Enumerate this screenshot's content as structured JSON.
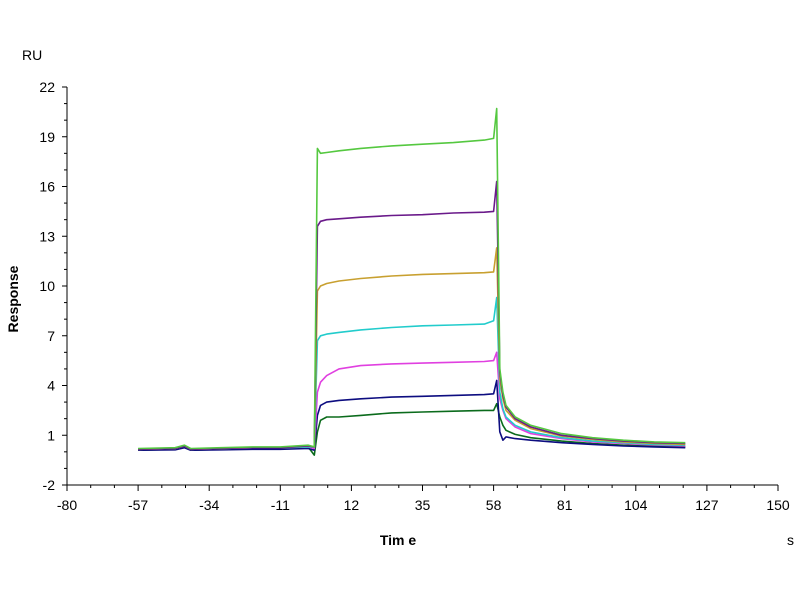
{
  "chart_data": {
    "type": "line",
    "title": "",
    "xlabel": "Tim e",
    "ylabel": "Response",
    "x_unit": "s",
    "y_unit": "RU",
    "xlim": [
      -80,
      150
    ],
    "ylim": [
      -2,
      22
    ],
    "xticks": [
      -80,
      -57,
      -34,
      -11,
      12,
      35,
      58,
      81,
      104,
      127,
      150
    ],
    "yticks": [
      -2,
      1,
      4,
      7,
      10,
      13,
      16,
      19,
      22
    ],
    "grid": false,
    "legend": "none",
    "series": [
      {
        "color": "#0b6b1c",
        "x": [
          -57,
          -45,
          -42,
          -40,
          -30,
          -20,
          -11,
          -2,
          0,
          1,
          2,
          4,
          8,
          15,
          25,
          35,
          45,
          55,
          58,
          59,
          60,
          61,
          62,
          65,
          70,
          80,
          90,
          100,
          110,
          120
        ],
        "y": [
          0.1,
          0.15,
          0.3,
          0.1,
          0.15,
          0.2,
          0.2,
          0.3,
          -0.2,
          1.2,
          1.9,
          2.1,
          2.1,
          2.2,
          2.35,
          2.4,
          2.45,
          2.5,
          2.5,
          2.9,
          2.1,
          1.6,
          1.3,
          1.05,
          0.85,
          0.65,
          0.5,
          0.4,
          0.35,
          0.3
        ]
      },
      {
        "color": "#0d0d80",
        "x": [
          -57,
          -45,
          -42,
          -40,
          -30,
          -20,
          -11,
          -2,
          0,
          1,
          2,
          4,
          8,
          15,
          25,
          35,
          45,
          55,
          58,
          59,
          60,
          61,
          62,
          65,
          70,
          80,
          90,
          100,
          110,
          120
        ],
        "y": [
          0.1,
          0.12,
          0.25,
          0.1,
          0.12,
          0.15,
          0.15,
          0.2,
          0.1,
          2.2,
          2.8,
          3.0,
          3.1,
          3.2,
          3.3,
          3.35,
          3.4,
          3.45,
          3.5,
          4.3,
          1.2,
          0.7,
          0.9,
          0.8,
          0.7,
          0.55,
          0.45,
          0.35,
          0.3,
          0.25
        ]
      },
      {
        "color": "#e040e0",
        "x": [
          -57,
          -45,
          -42,
          -40,
          -30,
          -20,
          -11,
          -2,
          0,
          1,
          2,
          4,
          8,
          15,
          25,
          35,
          45,
          55,
          58,
          59,
          60,
          61,
          62,
          65,
          70,
          80,
          90,
          100,
          110,
          120
        ],
        "y": [
          0.15,
          0.2,
          0.35,
          0.15,
          0.2,
          0.25,
          0.25,
          0.3,
          0.2,
          3.6,
          4.2,
          4.6,
          5.0,
          5.2,
          5.3,
          5.35,
          5.4,
          5.45,
          5.5,
          6.0,
          3.2,
          2.5,
          2.0,
          1.5,
          1.1,
          0.8,
          0.6,
          0.5,
          0.42,
          0.35
        ]
      },
      {
        "color": "#22cccc",
        "x": [
          -57,
          -45,
          -42,
          -40,
          -30,
          -20,
          -11,
          -2,
          0,
          1,
          2,
          4,
          8,
          15,
          25,
          35,
          45,
          55,
          58,
          59,
          60,
          61,
          62,
          65,
          70,
          80,
          90,
          100,
          110,
          120
        ],
        "y": [
          0.15,
          0.2,
          0.35,
          0.15,
          0.2,
          0.25,
          0.25,
          0.3,
          0.3,
          6.7,
          7.0,
          7.1,
          7.2,
          7.35,
          7.5,
          7.6,
          7.65,
          7.7,
          7.9,
          9.3,
          3.6,
          2.6,
          2.1,
          1.6,
          1.2,
          0.85,
          0.65,
          0.55,
          0.45,
          0.4
        ]
      },
      {
        "color": "#c8a030",
        "x": [
          -57,
          -45,
          -42,
          -40,
          -30,
          -20,
          -11,
          -2,
          0,
          1,
          2,
          4,
          8,
          15,
          25,
          35,
          45,
          55,
          58,
          59,
          60,
          61,
          62,
          65,
          70,
          80,
          90,
          100,
          110,
          120
        ],
        "y": [
          0.15,
          0.2,
          0.35,
          0.15,
          0.2,
          0.25,
          0.25,
          0.35,
          0.3,
          9.7,
          10.0,
          10.15,
          10.3,
          10.45,
          10.6,
          10.7,
          10.75,
          10.8,
          10.85,
          12.3,
          4.4,
          3.2,
          2.5,
          1.9,
          1.4,
          0.95,
          0.75,
          0.6,
          0.5,
          0.45
        ]
      },
      {
        "color": "#6a1a8a",
        "x": [
          -57,
          -45,
          -42,
          -40,
          -30,
          -20,
          -11,
          -2,
          0,
          1,
          2,
          4,
          8,
          15,
          25,
          35,
          45,
          55,
          58,
          59,
          60,
          61,
          62,
          65,
          70,
          80,
          90,
          100,
          110,
          120
        ],
        "y": [
          0.15,
          0.2,
          0.35,
          0.15,
          0.2,
          0.25,
          0.25,
          0.35,
          0.3,
          13.6,
          13.9,
          14.0,
          14.05,
          14.15,
          14.25,
          14.3,
          14.4,
          14.45,
          14.5,
          16.3,
          4.8,
          3.4,
          2.7,
          2.0,
          1.5,
          1.0,
          0.8,
          0.65,
          0.55,
          0.5
        ]
      },
      {
        "color": "#55c840",
        "x": [
          -57,
          -45,
          -42,
          -40,
          -30,
          -20,
          -11,
          -2,
          0,
          1,
          2,
          4,
          8,
          15,
          25,
          35,
          45,
          55,
          58,
          59,
          60,
          61,
          62,
          65,
          70,
          80,
          90,
          100,
          110,
          120
        ],
        "y": [
          0.2,
          0.25,
          0.4,
          0.2,
          0.25,
          0.3,
          0.3,
          0.4,
          0.3,
          18.3,
          18.0,
          18.05,
          18.15,
          18.3,
          18.45,
          18.55,
          18.65,
          18.8,
          18.9,
          20.7,
          5.0,
          3.6,
          2.8,
          2.1,
          1.6,
          1.1,
          0.85,
          0.7,
          0.6,
          0.55
        ]
      }
    ]
  }
}
